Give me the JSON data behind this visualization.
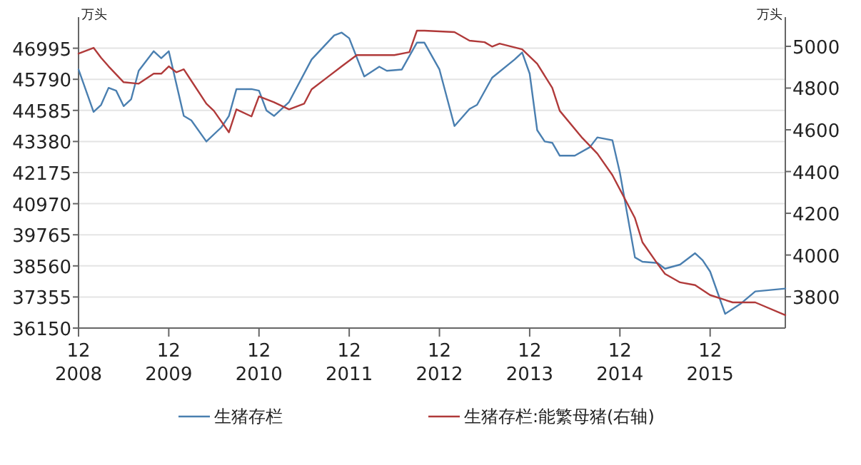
{
  "chart_data": {
    "type": "line",
    "ylabel": "万头",
    "y2label": "万头",
    "xlim": [
      "2008-12",
      "2016-10"
    ],
    "xticks": [
      {
        "value": "2008-12",
        "label": "12\n2008"
      },
      {
        "value": "2009-12",
        "label": "12\n2009"
      },
      {
        "value": "2010-12",
        "label": "12\n2010"
      },
      {
        "value": "2011-12",
        "label": "12\n2011"
      },
      {
        "value": "2012-12",
        "label": "12\n2012"
      },
      {
        "value": "2013-12",
        "label": "12\n2013"
      },
      {
        "value": "2014-12",
        "label": "12\n2014"
      },
      {
        "value": "2015-12",
        "label": "12\n2015"
      }
    ],
    "ylim": [
      36150,
      48200
    ],
    "yticks": [
      36150,
      37355,
      38560,
      39765,
      40970,
      42175,
      43380,
      44585,
      45790,
      46995
    ],
    "y2lim": [
      3650,
      5140
    ],
    "y2ticks": [
      3800,
      4000,
      4200,
      4400,
      4600,
      4800,
      5000
    ],
    "grid": "y",
    "legend": "bottom",
    "series": [
      {
        "name": "生猪存栏",
        "color": "#4a7fb0",
        "x": [
          "2008-12",
          "2009-02",
          "2009-03",
          "2009-04",
          "2009-05",
          "2009-06",
          "2009-07",
          "2009-08",
          "2009-10",
          "2009-11",
          "2009-12",
          "2010-02",
          "2010-03",
          "2010-05",
          "2010-07",
          "2010-08",
          "2010-09",
          "2010-11",
          "2010-12",
          "2011-01",
          "2011-02",
          "2011-04",
          "2011-07",
          "2011-10",
          "2011-11",
          "2011-12",
          "2012-02",
          "2012-04",
          "2012-05",
          "2012-07",
          "2012-09",
          "2012-10",
          "2012-12",
          "2013-02",
          "2013-04",
          "2013-05",
          "2013-07",
          "2013-10",
          "2013-11",
          "2013-12",
          "2014-01",
          "2014-02",
          "2014-03",
          "2014-04",
          "2014-06",
          "2014-08",
          "2014-09",
          "2014-11",
          "2014-12",
          "2015-02",
          "2015-03",
          "2015-05",
          "2015-06",
          "2015-08",
          "2015-10",
          "2015-11",
          "2015-12",
          "2016-02",
          "2016-04",
          "2016-06",
          "2016-10"
        ],
        "values": [
          46170,
          44530,
          44800,
          45460,
          45350,
          44750,
          45020,
          46120,
          46880,
          46610,
          46880,
          44370,
          44200,
          43380,
          43930,
          44370,
          45410,
          45410,
          45350,
          44580,
          44370,
          44910,
          46560,
          47490,
          47600,
          47380,
          45900,
          46280,
          46120,
          46170,
          47210,
          47210,
          46170,
          43980,
          44640,
          44800,
          45850,
          46560,
          46830,
          46010,
          43820,
          43380,
          43330,
          42830,
          42830,
          43160,
          43540,
          43430,
          42170,
          38890,
          38720,
          38670,
          38450,
          38610,
          39050,
          38780,
          38340,
          36700,
          37080,
          37570,
          37680
        ]
      },
      {
        "name": "生猪存栏:能繁母猪(右轴)",
        "color": "#b03a3a",
        "axis": "y2",
        "x": [
          "2008-12",
          "2009-02",
          "2009-03",
          "2009-04",
          "2009-06",
          "2009-08",
          "2009-10",
          "2009-11",
          "2009-12",
          "2010-01",
          "2010-02",
          "2010-03",
          "2010-05",
          "2010-06",
          "2010-08",
          "2010-09",
          "2010-11",
          "2010-12",
          "2011-02",
          "2011-04",
          "2011-06",
          "2011-07",
          "2011-09",
          "2011-11",
          "2012-01",
          "2012-04",
          "2012-06",
          "2012-08",
          "2012-09",
          "2012-10",
          "2013-02",
          "2013-04",
          "2013-06",
          "2013-07",
          "2013-08",
          "2013-11",
          "2014-01",
          "2014-03",
          "2014-04",
          "2014-07",
          "2014-09",
          "2014-11",
          "2015-02",
          "2015-03",
          "2015-05",
          "2015-06",
          "2015-08",
          "2015-10",
          "2015-12",
          "2016-03",
          "2016-06",
          "2016-10"
        ],
        "values": [
          4965,
          4993,
          4945,
          4904,
          4828,
          4821,
          4869,
          4869,
          4904,
          4876,
          4890,
          4835,
          4725,
          4691,
          4588,
          4698,
          4664,
          4760,
          4732,
          4698,
          4725,
          4794,
          4849,
          4904,
          4958,
          4958,
          4958,
          4972,
          5075,
          5075,
          5068,
          5027,
          5020,
          4999,
          5013,
          4986,
          4917,
          4801,
          4691,
          4561,
          4486,
          4383,
          4177,
          4061,
          3958,
          3910,
          3869,
          3856,
          3808,
          3773,
          3773,
          3712
        ]
      }
    ]
  }
}
